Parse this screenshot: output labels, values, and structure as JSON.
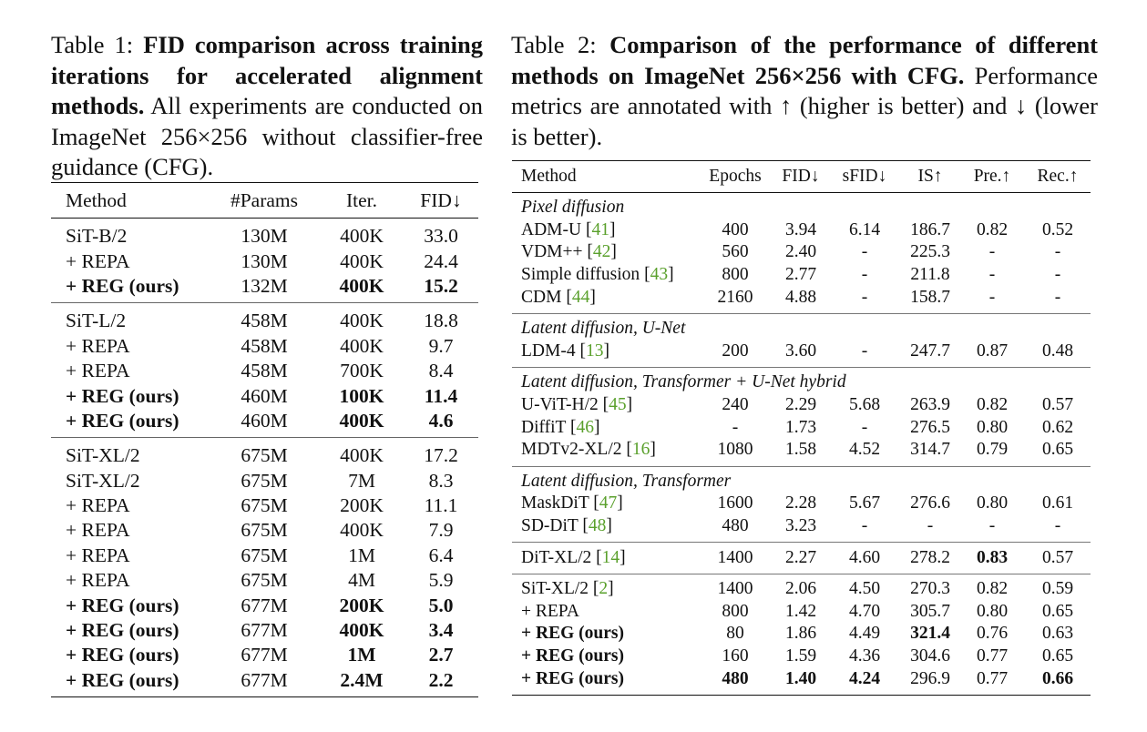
{
  "table1": {
    "caption": {
      "label": "Table 1:",
      "title": "FID comparison across training iterations for accelerated alignment methods.",
      "text": "All experiments are conducted on ImageNet 256×256 without classifier-free guidance (CFG)."
    },
    "headers": [
      "Method",
      "#Params",
      "Iter.",
      "FID↓"
    ],
    "groups": [
      [
        {
          "cells": [
            "SiT-B/2",
            "130M",
            "400K",
            "33.0"
          ],
          "bold": []
        },
        {
          "cells": [
            "+ REPA",
            "130M",
            "400K",
            "24.4"
          ],
          "bold": []
        },
        {
          "cells": [
            "+ REG (ours)",
            "132M",
            "400K",
            "15.2"
          ],
          "bold": [
            0,
            2,
            3
          ]
        }
      ],
      [
        {
          "cells": [
            "SiT-L/2",
            "458M",
            "400K",
            "18.8"
          ],
          "bold": []
        },
        {
          "cells": [
            "+ REPA",
            "458M",
            "400K",
            "9.7"
          ],
          "bold": []
        },
        {
          "cells": [
            "+ REPA",
            "458M",
            "700K",
            "8.4"
          ],
          "bold": []
        },
        {
          "cells": [
            "+ REG (ours)",
            "460M",
            "100K",
            "11.4"
          ],
          "bold": [
            0,
            2,
            3
          ]
        },
        {
          "cells": [
            "+ REG (ours)",
            "460M",
            "400K",
            "4.6"
          ],
          "bold": [
            0,
            2,
            3
          ]
        }
      ],
      [
        {
          "cells": [
            "SiT-XL/2",
            "675M",
            "400K",
            "17.2"
          ],
          "bold": []
        },
        {
          "cells": [
            "SiT-XL/2",
            "675M",
            "7M",
            "8.3"
          ],
          "bold": []
        },
        {
          "cells": [
            "+ REPA",
            "675M",
            "200K",
            "11.1"
          ],
          "bold": []
        },
        {
          "cells": [
            "+ REPA",
            "675M",
            "400K",
            "7.9"
          ],
          "bold": []
        },
        {
          "cells": [
            "+ REPA",
            "675M",
            "1M",
            "6.4"
          ],
          "bold": []
        },
        {
          "cells": [
            "+ REPA",
            "675M",
            "4M",
            "5.9"
          ],
          "bold": []
        },
        {
          "cells": [
            "+ REG (ours)",
            "677M",
            "200K",
            "5.0"
          ],
          "bold": [
            0,
            2,
            3
          ]
        },
        {
          "cells": [
            "+ REG (ours)",
            "677M",
            "400K",
            "3.4"
          ],
          "bold": [
            0,
            2,
            3
          ]
        },
        {
          "cells": [
            "+ REG (ours)",
            "677M",
            "1M",
            "2.7"
          ],
          "bold": [
            0,
            2,
            3
          ]
        },
        {
          "cells": [
            "+ REG (ours)",
            "677M",
            "2.4M",
            "2.2"
          ],
          "bold": [
            0,
            2,
            3
          ]
        }
      ]
    ]
  },
  "table2": {
    "caption": {
      "label": "Table 2:",
      "title": "Comparison of the performance of different methods on ImageNet 256×256 with CFG.",
      "text": "Performance metrics are annotated with ↑ (higher is better) and ↓ (lower is better)."
    },
    "headers": [
      "Method",
      "Epochs",
      "FID↓",
      "sFID↓",
      "IS↑",
      "Pre.↑",
      "Rec.↑"
    ],
    "groups": [
      {
        "section": "Pixel diffusion",
        "rows": [
          {
            "name": "ADM-U",
            "ref": "41",
            "cells": [
              "400",
              "3.94",
              "6.14",
              "186.7",
              "0.82",
              "0.52"
            ],
            "bold": []
          },
          {
            "name": "VDM++",
            "ref": "42",
            "cells": [
              "560",
              "2.40",
              "-",
              "225.3",
              "-",
              "-"
            ],
            "bold": []
          },
          {
            "name": "Simple diffusion",
            "ref": "43",
            "cells": [
              "800",
              "2.77",
              "-",
              "211.8",
              "-",
              "-"
            ],
            "bold": []
          },
          {
            "name": "CDM",
            "ref": "44",
            "cells": [
              "2160",
              "4.88",
              "-",
              "158.7",
              "-",
              "-"
            ],
            "bold": []
          }
        ]
      },
      {
        "section": "Latent diffusion, U-Net",
        "rows": [
          {
            "name": "LDM-4",
            "ref": "13",
            "cells": [
              "200",
              "3.60",
              "-",
              "247.7",
              "0.87",
              "0.48"
            ],
            "bold": []
          }
        ]
      },
      {
        "section": "Latent diffusion, Transformer + U-Net hybrid",
        "rows": [
          {
            "name": "U-ViT-H/2",
            "ref": "45",
            "cells": [
              "240",
              "2.29",
              "5.68",
              "263.9",
              "0.82",
              "0.57"
            ],
            "bold": []
          },
          {
            "name": "DiffiT",
            "ref": "46",
            "cells": [
              "-",
              "1.73",
              "-",
              "276.5",
              "0.80",
              "0.62"
            ],
            "bold": []
          },
          {
            "name": "MDTv2-XL/2",
            "ref": "16",
            "cells": [
              "1080",
              "1.58",
              "4.52",
              "314.7",
              "0.79",
              "0.65"
            ],
            "bold": []
          }
        ]
      },
      {
        "section": "Latent diffusion, Transformer",
        "rows": [
          {
            "name": "MaskDiT",
            "ref": "47",
            "cells": [
              "1600",
              "2.28",
              "5.67",
              "276.6",
              "0.80",
              "0.61"
            ],
            "bold": []
          },
          {
            "name": "SD-DiT",
            "ref": "48",
            "cells": [
              "480",
              "3.23",
              "-",
              "-",
              "-",
              "-"
            ],
            "bold": []
          }
        ]
      },
      {
        "section": "",
        "rows": [
          {
            "name": "DiT-XL/2",
            "ref": "14",
            "cells": [
              "1400",
              "2.27",
              "4.60",
              "278.2",
              "0.83",
              "0.57"
            ],
            "bold": [
              4
            ]
          }
        ]
      },
      {
        "section": "",
        "rows": [
          {
            "name": "SiT-XL/2",
            "ref": "2",
            "cells": [
              "1400",
              "2.06",
              "4.50",
              "270.3",
              "0.82",
              "0.59"
            ],
            "bold": []
          },
          {
            "name": "+ REPA",
            "ref": "",
            "cells": [
              "800",
              "1.42",
              "4.70",
              "305.7",
              "0.80",
              "0.65"
            ],
            "bold": []
          },
          {
            "name": "+ REG (ours)",
            "ref": "",
            "cells": [
              "80",
              "1.86",
              "4.49",
              "321.4",
              "0.76",
              "0.63"
            ],
            "bold": [
              "name",
              3
            ]
          },
          {
            "name": "+ REG (ours)",
            "ref": "",
            "cells": [
              "160",
              "1.59",
              "4.36",
              "304.6",
              "0.77",
              "0.65"
            ],
            "bold": [
              "name"
            ]
          },
          {
            "name": "+ REG (ours)",
            "ref": "",
            "cells": [
              "480",
              "1.40",
              "4.24",
              "296.9",
              "0.77",
              "0.66"
            ],
            "bold": [
              "name",
              0,
              1,
              2,
              5
            ]
          }
        ]
      }
    ]
  }
}
